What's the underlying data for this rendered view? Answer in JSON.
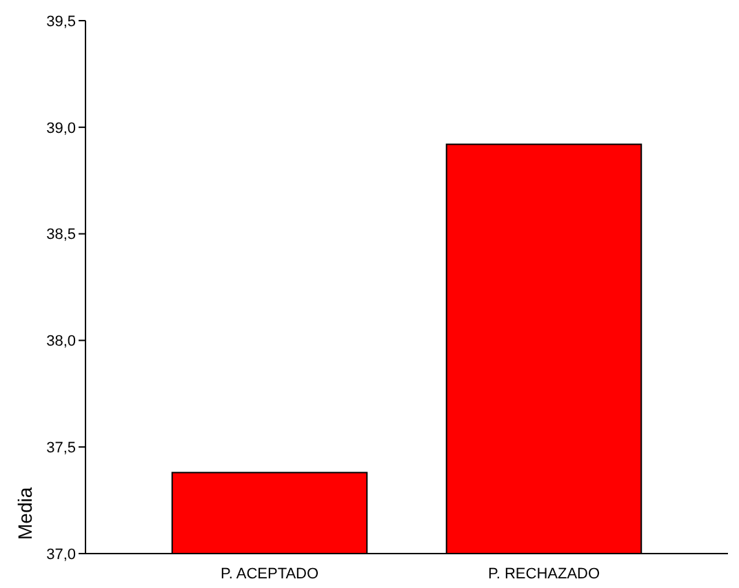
{
  "chart_data": {
    "type": "bar",
    "ylabel": "Media",
    "categories": [
      "P. ACEPTADO",
      "P. RECHAZADO"
    ],
    "values": [
      37.38,
      38.92
    ],
    "color": "#ff0000",
    "ylim": [
      37.0,
      39.5
    ],
    "yticks": [
      {
        "value": 37.0,
        "label": "37,0"
      },
      {
        "value": 37.5,
        "label": "37,5"
      },
      {
        "value": 38.0,
        "label": "38,0"
      },
      {
        "value": 38.5,
        "label": "38,5"
      },
      {
        "value": 39.0,
        "label": "39,0"
      },
      {
        "value": 39.5,
        "label": "39,5"
      }
    ],
    "grid": false
  }
}
